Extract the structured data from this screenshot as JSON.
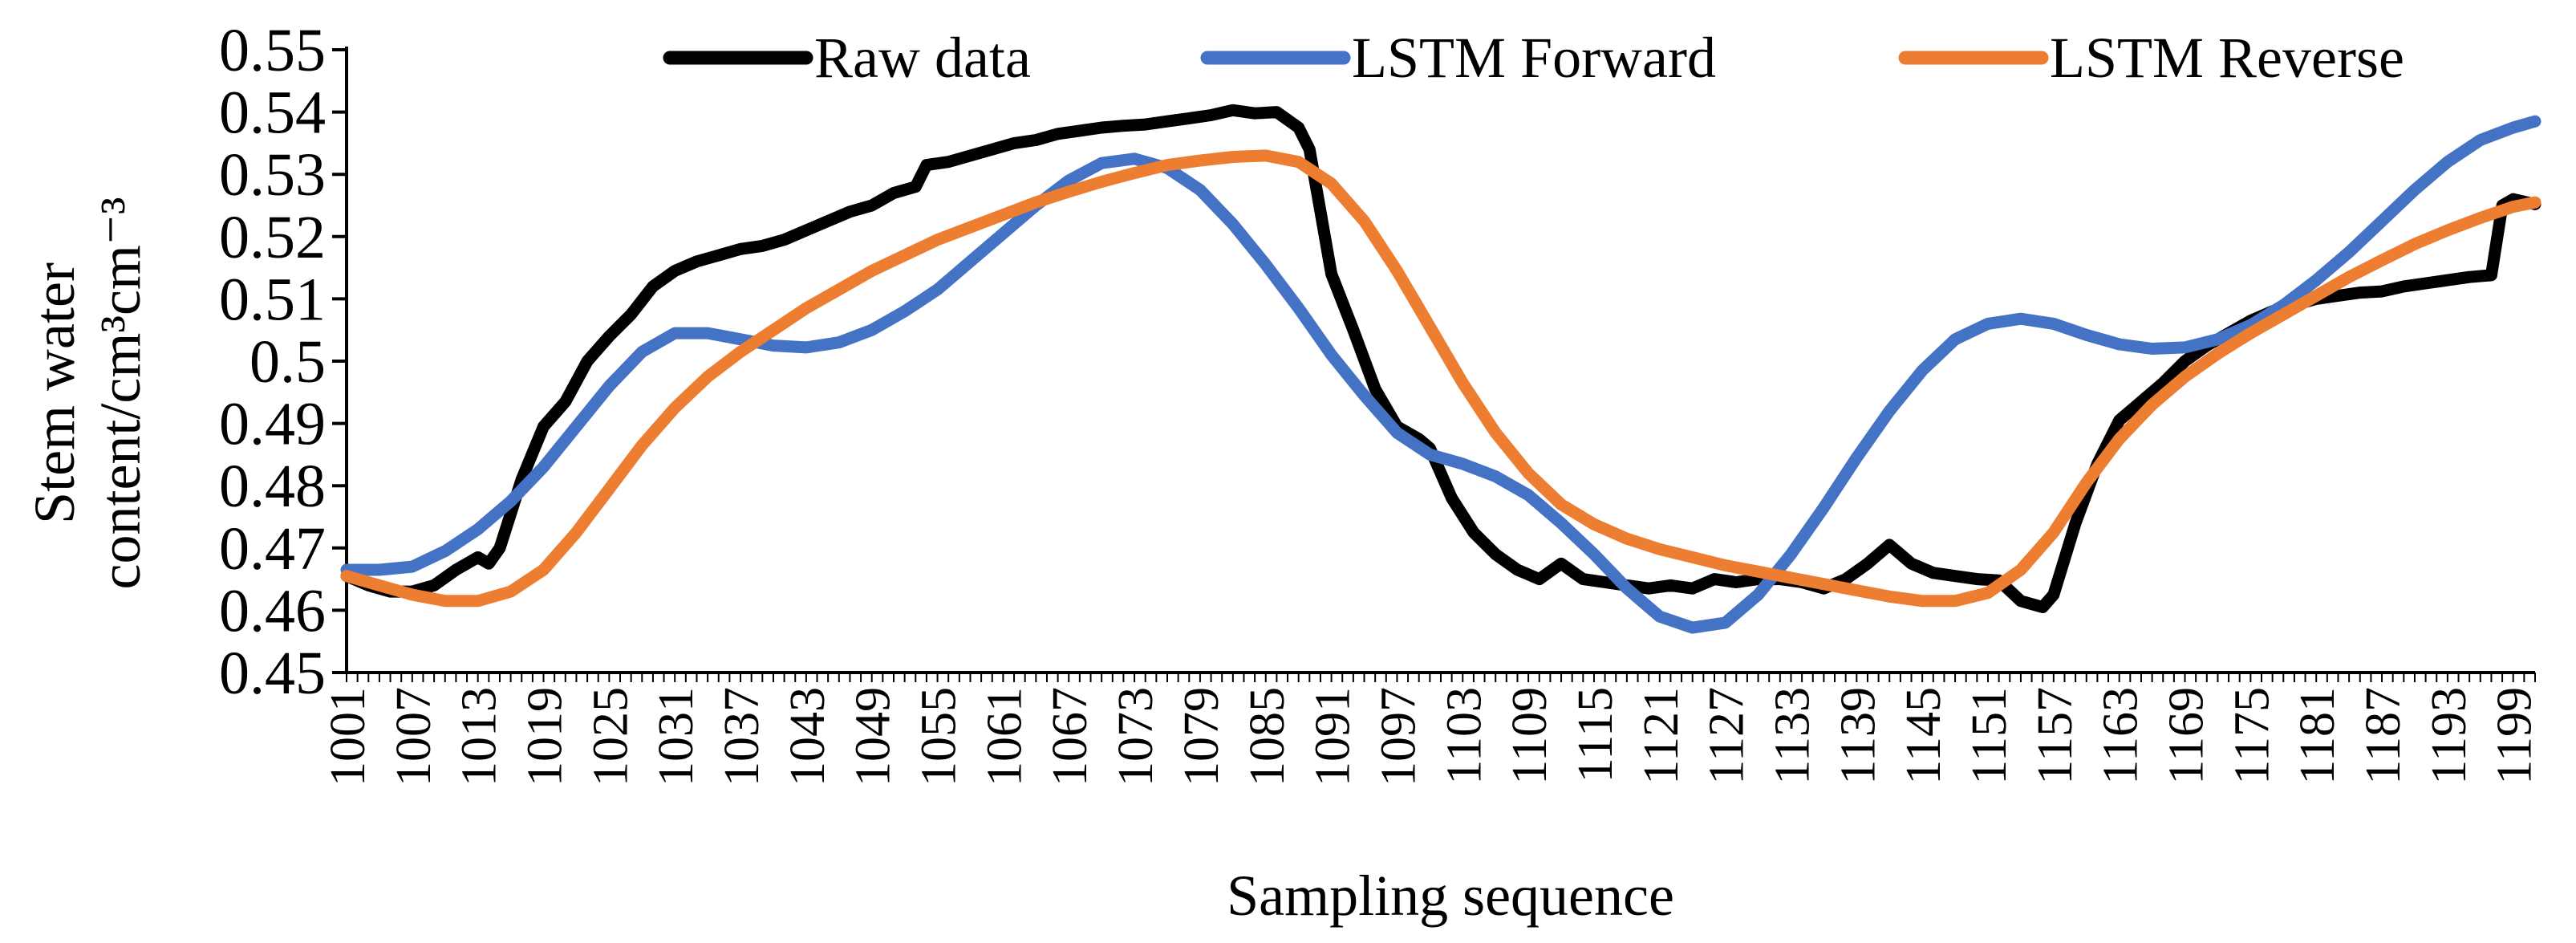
{
  "chart_data": {
    "type": "line",
    "title": "",
    "xlabel": "Sampling sequence",
    "ylabel_line1": "Stem water",
    "ylabel_line2": "content/cm³cm⁻³",
    "x_start": 1001,
    "x_end": 1201,
    "x_tick_step": 6,
    "ylim": [
      0.45,
      0.55
    ],
    "y_ticks": [
      "0.45",
      "0.46",
      "0.47",
      "0.48",
      "0.49",
      "0.5",
      "0.51",
      "0.52",
      "0.53",
      "0.54",
      "0.55"
    ],
    "x_ticks": [
      "1001",
      "1007",
      "1013",
      "1019",
      "1025",
      "1031",
      "1037",
      "1043",
      "1049",
      "1055",
      "1061",
      "1067",
      "1073",
      "1079",
      "1085",
      "1091",
      "1097",
      "1103",
      "1109",
      "1115",
      "1121",
      "1127",
      "1133",
      "1139",
      "1145",
      "1151",
      "1157",
      "1163",
      "1169",
      "1175",
      "1181",
      "1187",
      "1193",
      "1199"
    ],
    "legend": {
      "position": "top"
    },
    "series": [
      {
        "name": "Raw data",
        "color": "#000000",
        "points": [
          [
            1001,
            0.4655
          ],
          [
            1003,
            0.464
          ],
          [
            1005,
            0.463
          ],
          [
            1007,
            0.463
          ],
          [
            1009,
            0.464
          ],
          [
            1011,
            0.4665
          ],
          [
            1013,
            0.4685
          ],
          [
            1014,
            0.4675
          ],
          [
            1015,
            0.47
          ],
          [
            1017,
            0.481
          ],
          [
            1019,
            0.4895
          ],
          [
            1021,
            0.4935
          ],
          [
            1023,
            0.5
          ],
          [
            1025,
            0.504
          ],
          [
            1027,
            0.5075
          ],
          [
            1029,
            0.512
          ],
          [
            1031,
            0.5145
          ],
          [
            1033,
            0.516
          ],
          [
            1035,
            0.517
          ],
          [
            1037,
            0.518
          ],
          [
            1039,
            0.5185
          ],
          [
            1041,
            0.5195
          ],
          [
            1043,
            0.521
          ],
          [
            1045,
            0.5225
          ],
          [
            1047,
            0.524
          ],
          [
            1049,
            0.525
          ],
          [
            1051,
            0.527
          ],
          [
            1053,
            0.528
          ],
          [
            1054,
            0.5315
          ],
          [
            1056,
            0.532
          ],
          [
            1058,
            0.533
          ],
          [
            1060,
            0.534
          ],
          [
            1062,
            0.535
          ],
          [
            1064,
            0.5355
          ],
          [
            1066,
            0.5365
          ],
          [
            1068,
            0.537
          ],
          [
            1070,
            0.5375
          ],
          [
            1072,
            0.5378
          ],
          [
            1074,
            0.538
          ],
          [
            1076,
            0.5385
          ],
          [
            1078,
            0.539
          ],
          [
            1080,
            0.5395
          ],
          [
            1082,
            0.5403
          ],
          [
            1084,
            0.5398
          ],
          [
            1086,
            0.54
          ],
          [
            1088,
            0.5375
          ],
          [
            1089,
            0.534
          ],
          [
            1090,
            0.524
          ],
          [
            1091,
            0.514
          ],
          [
            1093,
            0.505
          ],
          [
            1095,
            0.4955
          ],
          [
            1097,
            0.4895
          ],
          [
            1099,
            0.4875
          ],
          [
            1100,
            0.486
          ],
          [
            1102,
            0.478
          ],
          [
            1104,
            0.4725
          ],
          [
            1106,
            0.469
          ],
          [
            1108,
            0.4665
          ],
          [
            1110,
            0.465
          ],
          [
            1112,
            0.4675
          ],
          [
            1114,
            0.465
          ],
          [
            1116,
            0.4645
          ],
          [
            1118,
            0.464
          ],
          [
            1120,
            0.4635
          ],
          [
            1122,
            0.464
          ],
          [
            1124,
            0.4635
          ],
          [
            1126,
            0.465
          ],
          [
            1128,
            0.4645
          ],
          [
            1130,
            0.465
          ],
          [
            1132,
            0.465
          ],
          [
            1134,
            0.4645
          ],
          [
            1136,
            0.4635
          ],
          [
            1138,
            0.465
          ],
          [
            1140,
            0.4675
          ],
          [
            1142,
            0.4705
          ],
          [
            1144,
            0.4675
          ],
          [
            1146,
            0.466
          ],
          [
            1148,
            0.4655
          ],
          [
            1150,
            0.465
          ],
          [
            1152,
            0.4648
          ],
          [
            1154,
            0.4615
          ],
          [
            1156,
            0.4605
          ],
          [
            1157,
            0.4625
          ],
          [
            1159,
            0.474
          ],
          [
            1161,
            0.4835
          ],
          [
            1163,
            0.4905
          ],
          [
            1165,
            0.4935
          ],
          [
            1167,
            0.4965
          ],
          [
            1169,
            0.5
          ],
          [
            1171,
            0.5025
          ],
          [
            1173,
            0.5045
          ],
          [
            1175,
            0.5065
          ],
          [
            1177,
            0.508
          ],
          [
            1179,
            0.509
          ],
          [
            1181,
            0.51
          ],
          [
            1183,
            0.5105
          ],
          [
            1185,
            0.511
          ],
          [
            1187,
            0.5112
          ],
          [
            1189,
            0.512
          ],
          [
            1191,
            0.5125
          ],
          [
            1193,
            0.513
          ],
          [
            1195,
            0.5135
          ],
          [
            1197,
            0.5138
          ],
          [
            1198,
            0.525
          ],
          [
            1199,
            0.526
          ],
          [
            1201,
            0.5252
          ]
        ]
      },
      {
        "name": "LSTM Forward",
        "color": "#4472C4",
        "points": [
          [
            1001,
            0.4665
          ],
          [
            1004,
            0.4665
          ],
          [
            1007,
            0.467
          ],
          [
            1010,
            0.4695
          ],
          [
            1013,
            0.473
          ],
          [
            1016,
            0.4775
          ],
          [
            1019,
            0.483
          ],
          [
            1022,
            0.4895
          ],
          [
            1025,
            0.496
          ],
          [
            1028,
            0.5015
          ],
          [
            1031,
            0.5045
          ],
          [
            1034,
            0.5045
          ],
          [
            1037,
            0.5035
          ],
          [
            1040,
            0.5025
          ],
          [
            1043,
            0.5022
          ],
          [
            1046,
            0.503
          ],
          [
            1049,
            0.505
          ],
          [
            1052,
            0.508
          ],
          [
            1055,
            0.5115
          ],
          [
            1058,
            0.516
          ],
          [
            1061,
            0.5205
          ],
          [
            1064,
            0.525
          ],
          [
            1067,
            0.529
          ],
          [
            1070,
            0.5318
          ],
          [
            1073,
            0.5325
          ],
          [
            1076,
            0.531
          ],
          [
            1079,
            0.5275
          ],
          [
            1082,
            0.522
          ],
          [
            1085,
            0.5155
          ],
          [
            1088,
            0.5085
          ],
          [
            1091,
            0.501
          ],
          [
            1094,
            0.4945
          ],
          [
            1097,
            0.4885
          ],
          [
            1100,
            0.485
          ],
          [
            1103,
            0.4835
          ],
          [
            1106,
            0.4815
          ],
          [
            1109,
            0.4785
          ],
          [
            1112,
            0.474
          ],
          [
            1115,
            0.469
          ],
          [
            1118,
            0.4635
          ],
          [
            1121,
            0.459
          ],
          [
            1124,
            0.4572
          ],
          [
            1127,
            0.458
          ],
          [
            1130,
            0.4625
          ],
          [
            1133,
            0.469
          ],
          [
            1136,
            0.4765
          ],
          [
            1139,
            0.4845
          ],
          [
            1142,
            0.492
          ],
          [
            1145,
            0.4985
          ],
          [
            1148,
            0.5035
          ],
          [
            1151,
            0.506
          ],
          [
            1154,
            0.5068
          ],
          [
            1157,
            0.506
          ],
          [
            1160,
            0.5042
          ],
          [
            1163,
            0.5027
          ],
          [
            1166,
            0.502
          ],
          [
            1169,
            0.5022
          ],
          [
            1172,
            0.5035
          ],
          [
            1175,
            0.5058
          ],
          [
            1178,
            0.509
          ],
          [
            1181,
            0.513
          ],
          [
            1184,
            0.5175
          ],
          [
            1187,
            0.5225
          ],
          [
            1190,
            0.5275
          ],
          [
            1193,
            0.532
          ],
          [
            1196,
            0.5355
          ],
          [
            1199,
            0.5375
          ],
          [
            1201,
            0.5385
          ]
        ]
      },
      {
        "name": "LSTM Reverse",
        "color": "#ED7D31",
        "points": [
          [
            1001,
            0.4655
          ],
          [
            1004,
            0.464
          ],
          [
            1007,
            0.4625
          ],
          [
            1010,
            0.4615
          ],
          [
            1013,
            0.4615
          ],
          [
            1016,
            0.463
          ],
          [
            1019,
            0.4665
          ],
          [
            1022,
            0.4725
          ],
          [
            1025,
            0.4795
          ],
          [
            1028,
            0.4865
          ],
          [
            1031,
            0.4925
          ],
          [
            1034,
            0.4975
          ],
          [
            1037,
            0.5015
          ],
          [
            1040,
            0.505
          ],
          [
            1043,
            0.5085
          ],
          [
            1046,
            0.5115
          ],
          [
            1049,
            0.5145
          ],
          [
            1052,
            0.517
          ],
          [
            1055,
            0.5195
          ],
          [
            1058,
            0.5215
          ],
          [
            1061,
            0.5235
          ],
          [
            1064,
            0.5255
          ],
          [
            1067,
            0.5272
          ],
          [
            1070,
            0.5288
          ],
          [
            1073,
            0.5302
          ],
          [
            1076,
            0.5315
          ],
          [
            1079,
            0.5322
          ],
          [
            1082,
            0.5328
          ],
          [
            1085,
            0.533
          ],
          [
            1088,
            0.532
          ],
          [
            1091,
            0.5285
          ],
          [
            1094,
            0.5225
          ],
          [
            1097,
            0.5145
          ],
          [
            1100,
            0.5055
          ],
          [
            1103,
            0.4965
          ],
          [
            1106,
            0.4885
          ],
          [
            1109,
            0.482
          ],
          [
            1112,
            0.477
          ],
          [
            1115,
            0.4738
          ],
          [
            1118,
            0.4715
          ],
          [
            1121,
            0.4698
          ],
          [
            1124,
            0.4685
          ],
          [
            1127,
            0.4672
          ],
          [
            1130,
            0.4662
          ],
          [
            1133,
            0.4652
          ],
          [
            1136,
            0.4642
          ],
          [
            1139,
            0.4632
          ],
          [
            1142,
            0.4622
          ],
          [
            1145,
            0.4615
          ],
          [
            1148,
            0.4615
          ],
          [
            1151,
            0.4628
          ],
          [
            1154,
            0.4665
          ],
          [
            1157,
            0.4725
          ],
          [
            1160,
            0.4805
          ],
          [
            1163,
            0.4875
          ],
          [
            1166,
            0.493
          ],
          [
            1169,
            0.4975
          ],
          [
            1172,
            0.5012
          ],
          [
            1175,
            0.5045
          ],
          [
            1178,
            0.5075
          ],
          [
            1181,
            0.5105
          ],
          [
            1184,
            0.5135
          ],
          [
            1187,
            0.5162
          ],
          [
            1190,
            0.5188
          ],
          [
            1193,
            0.521
          ],
          [
            1196,
            0.523
          ],
          [
            1199,
            0.5248
          ],
          [
            1201,
            0.5255
          ]
        ]
      }
    ]
  }
}
